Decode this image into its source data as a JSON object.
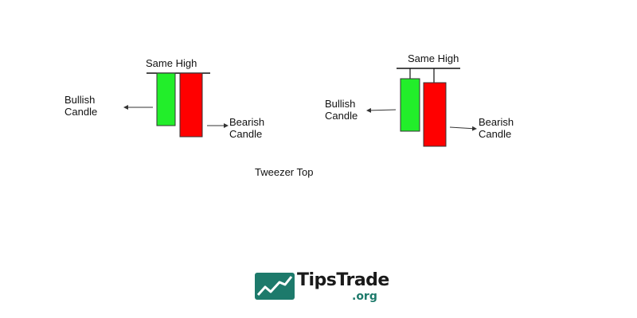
{
  "left_pattern": {
    "high_label": "Same High",
    "bullish_label": [
      "Bullish",
      "Candle"
    ],
    "bearish_label": [
      "Bearish",
      "Candle"
    ]
  },
  "right_pattern": {
    "high_label": "Same High",
    "bullish_label": [
      "Bullish",
      "Candle"
    ],
    "bearish_label": [
      "Bearish",
      "Candle"
    ]
  },
  "caption": "Tweezer Top",
  "logo": {
    "name": "TipsTrade",
    "suffix": ".org"
  },
  "colors": {
    "bullish": "#22ee2a",
    "bearish": "#ff0000",
    "brand": "#1d7a6b"
  }
}
